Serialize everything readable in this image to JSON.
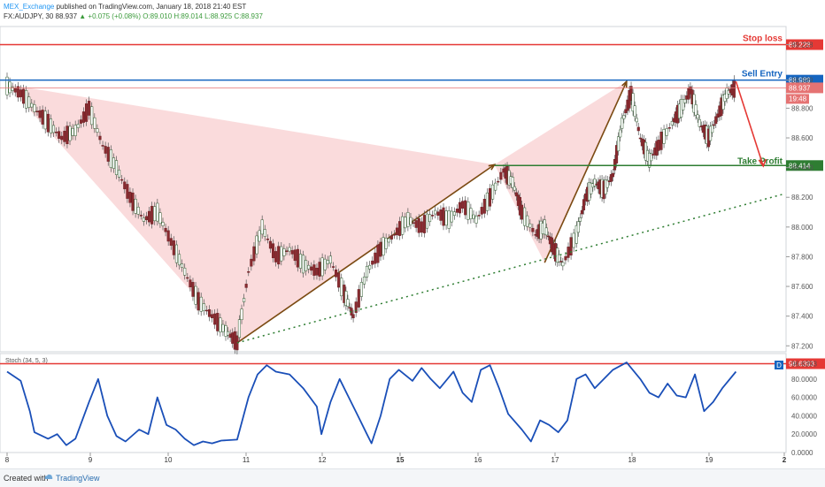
{
  "header": {
    "publisher": "MEX_Exchange",
    "published_text": "published on TradingView.com, January 18, 2018 21:40 EST",
    "symbol_line_prefix": "FX:AUDJPY, 30  88.937",
    "change": "▲ +0.075 (+0.08%)",
    "ohlc": "O:89.010 H:89.014 L:88.925 C:88.937"
  },
  "footer": {
    "created_with": "Created with",
    "brand": "TradingView"
  },
  "chart_data": [
    {
      "type": "line",
      "title": "FX:AUDJPY, 30",
      "x_ticks": [
        "8",
        "9",
        "10",
        "11",
        "12",
        "15",
        "16",
        "17",
        "18",
        "19",
        "2"
      ],
      "y_ticks": [
        "89.228",
        "88.989",
        "88.800",
        "88.600",
        "88.400",
        "88.200",
        "88.000",
        "87.800",
        "87.600",
        "87.400",
        "87.200"
      ],
      "ylim": [
        87.16,
        89.35
      ],
      "price_path": [
        [
          0,
          88.95
        ],
        [
          0.3,
          88.9
        ],
        [
          0.6,
          88.8
        ],
        [
          0.9,
          88.7
        ],
        [
          1.2,
          88.6
        ],
        [
          1.5,
          88.65
        ],
        [
          1.8,
          88.8
        ],
        [
          2.1,
          88.55
        ],
        [
          2.4,
          88.4
        ],
        [
          2.7,
          88.2
        ],
        [
          3.0,
          88.05
        ],
        [
          3.3,
          88.1
        ],
        [
          3.6,
          87.9
        ],
        [
          3.9,
          87.7
        ],
        [
          4.2,
          87.5
        ],
        [
          4.5,
          87.4
        ],
        [
          4.8,
          87.3
        ],
        [
          5.05,
          87.22
        ],
        [
          5.3,
          87.7
        ],
        [
          5.6,
          88.0
        ],
        [
          5.9,
          87.8
        ],
        [
          6.2,
          87.85
        ],
        [
          6.5,
          87.75
        ],
        [
          6.8,
          87.7
        ],
        [
          7.1,
          87.78
        ],
        [
          7.4,
          87.55
        ],
        [
          7.6,
          87.4
        ],
        [
          7.9,
          87.7
        ],
        [
          8.2,
          87.85
        ],
        [
          8.5,
          87.95
        ],
        [
          8.8,
          88.05
        ],
        [
          9.1,
          88.0
        ],
        [
          9.4,
          88.1
        ],
        [
          9.7,
          88.05
        ],
        [
          10.0,
          88.15
        ],
        [
          10.3,
          88.05
        ],
        [
          10.6,
          88.2
        ],
        [
          10.9,
          88.38
        ],
        [
          11.1,
          88.3
        ],
        [
          11.3,
          88.1
        ],
        [
          11.6,
          87.95
        ],
        [
          11.8,
          88.0
        ],
        [
          12.0,
          87.85
        ],
        [
          12.2,
          87.75
        ],
        [
          12.5,
          87.95
        ],
        [
          12.7,
          88.2
        ],
        [
          12.9,
          88.3
        ],
        [
          13.1,
          88.25
        ],
        [
          13.3,
          88.35
        ],
        [
          13.5,
          88.7
        ],
        [
          13.7,
          88.9
        ],
        [
          13.9,
          88.6
        ],
        [
          14.1,
          88.45
        ],
        [
          14.3,
          88.55
        ],
        [
          14.6,
          88.7
        ],
        [
          14.8,
          88.8
        ],
        [
          15.0,
          88.92
        ],
        [
          15.2,
          88.7
        ],
        [
          15.4,
          88.6
        ],
        [
          15.6,
          88.75
        ],
        [
          15.8,
          88.9
        ],
        [
          16.0,
          88.94
        ]
      ],
      "annotations": {
        "stop_loss": {
          "label": "Stop loss",
          "value": 89.228,
          "value_label": "89.228",
          "color": "#e53935"
        },
        "sell_entry": {
          "label": "Sell Entry",
          "value": 88.989,
          "value_label": "88.989",
          "color": "#1565c0"
        },
        "last_price": {
          "value": 88.937,
          "value_label": "88.937",
          "countdown": "19:48",
          "color": "#e57373"
        },
        "take_profit": {
          "label": "Take Profit",
          "value": 88.414,
          "value_label": "88.414",
          "color": "#2e7d32"
        },
        "support_trend": {
          "from": [
            5.05,
            87.22
          ],
          "to": [
            17.5,
            88.22
          ],
          "color": "#2e7d32"
        }
      },
      "pattern": {
        "fill": "#f8cfd0",
        "points": [
          [
            0,
            88.96
          ],
          [
            5.05,
            87.22
          ],
          [
            10.7,
            88.42
          ],
          [
            13.6,
            88.98
          ],
          [
            11.8,
            87.76
          ]
        ]
      }
    },
    {
      "type": "line",
      "title": "Stoch (34, 5, 3)",
      "y_ticks": [
        "96.6393",
        "80.0000",
        "60.0000",
        "40.0000",
        "20.0000",
        "0.0000"
      ],
      "ylim": [
        0,
        100
      ],
      "badge": "D",
      "upper_line": {
        "value": 96.6393,
        "value_label": "96.6393",
        "color": "#e53935"
      },
      "series": [
        {
          "color": "#1a4fb8",
          "values": [
            [
              0,
              88
            ],
            [
              0.3,
              78
            ],
            [
              0.5,
              45
            ],
            [
              0.6,
              22
            ],
            [
              0.9,
              15
            ],
            [
              1.1,
              20
            ],
            [
              1.3,
              8
            ],
            [
              1.5,
              15
            ],
            [
              1.8,
              55
            ],
            [
              2.0,
              80
            ],
            [
              2.2,
              40
            ],
            [
              2.4,
              18
            ],
            [
              2.6,
              12
            ],
            [
              2.9,
              25
            ],
            [
              3.1,
              20
            ],
            [
              3.3,
              60
            ],
            [
              3.5,
              30
            ],
            [
              3.7,
              25
            ],
            [
              3.9,
              15
            ],
            [
              4.1,
              8
            ],
            [
              4.3,
              12
            ],
            [
              4.5,
              10
            ],
            [
              4.7,
              13
            ],
            [
              5.05,
              14
            ],
            [
              5.3,
              60
            ],
            [
              5.5,
              85
            ],
            [
              5.7,
              95
            ],
            [
              5.9,
              88
            ],
            [
              6.2,
              85
            ],
            [
              6.5,
              70
            ],
            [
              6.8,
              50
            ],
            [
              6.9,
              20
            ],
            [
              7.1,
              55
            ],
            [
              7.3,
              80
            ],
            [
              7.5,
              60
            ],
            [
              7.7,
              40
            ],
            [
              7.9,
              20
            ],
            [
              8.0,
              10
            ],
            [
              8.2,
              40
            ],
            [
              8.4,
              80
            ],
            [
              8.6,
              90
            ],
            [
              8.9,
              78
            ],
            [
              9.1,
              92
            ],
            [
              9.3,
              80
            ],
            [
              9.5,
              70
            ],
            [
              9.8,
              88
            ],
            [
              10.0,
              65
            ],
            [
              10.2,
              55
            ],
            [
              10.4,
              90
            ],
            [
              10.6,
              95
            ],
            [
              10.8,
              70
            ],
            [
              11.0,
              42
            ],
            [
              11.3,
              25
            ],
            [
              11.5,
              12
            ],
            [
              11.7,
              35
            ],
            [
              11.9,
              30
            ],
            [
              12.1,
              22
            ],
            [
              12.3,
              35
            ],
            [
              12.5,
              80
            ],
            [
              12.7,
              85
            ],
            [
              12.9,
              70
            ],
            [
              13.1,
              80
            ],
            [
              13.3,
              90
            ],
            [
              13.6,
              98
            ],
            [
              13.9,
              80
            ],
            [
              14.1,
              65
            ],
            [
              14.3,
              60
            ],
            [
              14.5,
              75
            ],
            [
              14.7,
              62
            ],
            [
              14.9,
              60
            ],
            [
              15.1,
              85
            ],
            [
              15.3,
              45
            ],
            [
              15.5,
              55
            ],
            [
              15.7,
              70
            ],
            [
              16.0,
              88
            ]
          ]
        }
      ]
    }
  ]
}
